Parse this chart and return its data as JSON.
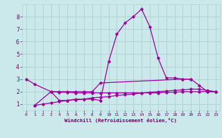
{
  "bg_color": "#cbe8ea",
  "grid_color": "#b0d4d4",
  "line_color": "#990099",
  "xlabel": "Windchill (Refroidissement éolien,°C)",
  "xlabel_color": "#660066",
  "xlim": [
    -0.5,
    23.5
  ],
  "ylim": [
    0.5,
    9.0
  ],
  "yticks": [
    1,
    2,
    3,
    4,
    5,
    6,
    7,
    8
  ],
  "xticks": [
    0,
    1,
    2,
    3,
    4,
    5,
    6,
    7,
    8,
    9,
    10,
    11,
    12,
    13,
    14,
    15,
    16,
    17,
    18,
    19,
    20,
    21,
    22,
    23
  ],
  "line1_x": [
    1,
    3,
    4,
    5,
    6,
    7,
    8,
    9,
    10,
    11,
    12,
    13,
    14,
    15,
    16,
    17,
    18,
    19,
    20
  ],
  "line1_y": [
    0.9,
    2.0,
    1.3,
    1.3,
    1.4,
    1.4,
    1.4,
    1.3,
    4.4,
    6.6,
    7.5,
    8.0,
    8.6,
    7.2,
    4.7,
    3.1,
    3.1,
    3.0,
    3.0
  ],
  "line2_x": [
    0,
    1,
    3,
    4,
    5,
    6,
    7,
    8,
    9,
    19,
    20,
    21,
    22,
    23
  ],
  "line2_y": [
    3.0,
    2.6,
    2.0,
    2.0,
    2.0,
    2.0,
    2.0,
    2.0,
    2.7,
    3.0,
    3.0,
    2.5,
    2.0,
    2.0
  ],
  "line3_x": [
    1,
    2,
    3,
    4,
    5,
    6,
    7,
    8,
    9,
    10,
    11,
    12,
    13,
    14,
    15,
    16,
    17,
    18,
    19,
    20,
    21,
    22,
    23
  ],
  "line3_y": [
    0.9,
    1.0,
    1.1,
    1.2,
    1.3,
    1.35,
    1.4,
    1.5,
    1.55,
    1.6,
    1.7,
    1.75,
    1.8,
    1.9,
    1.95,
    2.0,
    2.05,
    2.1,
    2.15,
    2.2,
    2.2,
    2.1,
    2.0
  ],
  "line4_x": [
    3,
    4,
    5,
    6,
    7,
    8,
    9,
    10,
    11,
    12,
    13,
    14,
    15,
    16,
    17,
    18,
    19,
    20,
    21,
    22,
    23
  ],
  "line4_y": [
    2.0,
    1.95,
    1.95,
    1.9,
    1.9,
    1.9,
    1.9,
    1.9,
    1.9,
    1.9,
    1.9,
    1.9,
    1.9,
    1.9,
    1.95,
    1.95,
    2.0,
    2.0,
    2.0,
    2.0,
    2.0
  ]
}
